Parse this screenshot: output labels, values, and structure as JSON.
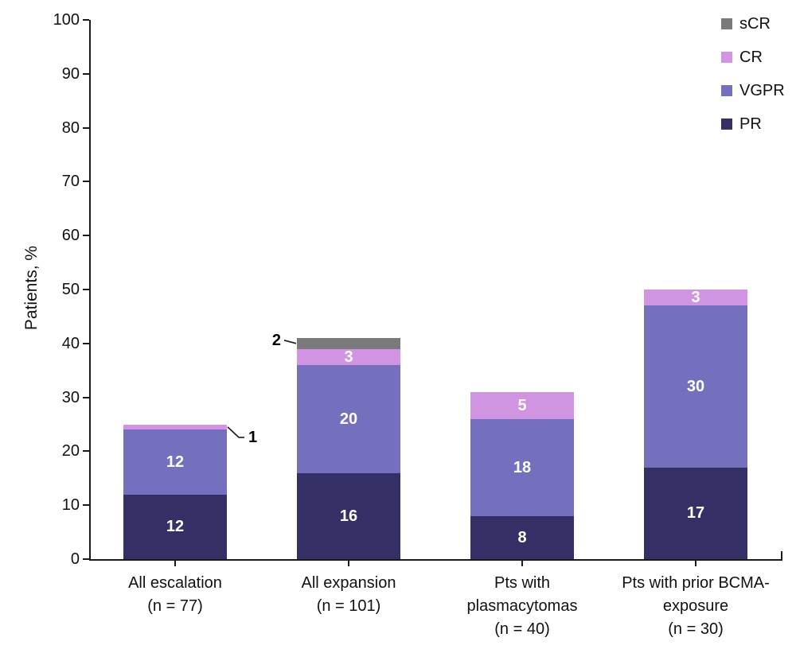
{
  "chart_data": {
    "type": "bar",
    "stacked": true,
    "title": "",
    "xlabel": "",
    "ylabel": "Patients, %",
    "ylim": [
      0,
      100
    ],
    "ytick_labels": [
      "0",
      "10",
      "20",
      "30",
      "40",
      "50",
      "60",
      "70",
      "80",
      "90",
      "100"
    ],
    "grid": false,
    "categories": [
      {
        "lines": [
          "All escalation",
          "(n = 77)"
        ]
      },
      {
        "lines": [
          "All expansion",
          "(n = 101)"
        ]
      },
      {
        "lines": [
          "Pts with",
          "plasmacytomas",
          "(n = 40)"
        ]
      },
      {
        "lines": [
          "Pts with prior BCMA-",
          "exposure",
          "(n = 30)"
        ]
      }
    ],
    "series": [
      {
        "name": "PR",
        "color": "#342F65",
        "values": [
          12,
          16,
          8,
          17
        ]
      },
      {
        "name": "VGPR",
        "color": "#7570BE",
        "values": [
          12,
          20,
          18,
          30
        ]
      },
      {
        "name": "CR",
        "color": "#D094E3",
        "values": [
          1,
          3,
          5,
          3
        ]
      },
      {
        "name": "sCR",
        "color": "#7A797B",
        "values": [
          0,
          2,
          0,
          0
        ]
      }
    ],
    "bar_totals": [
      25,
      41,
      31,
      50
    ],
    "legend": {
      "position": "top-right",
      "order": [
        "sCR",
        "CR",
        "VGPR",
        "PR"
      ]
    },
    "annotations": [
      {
        "series": "CR",
        "category_index": 0,
        "value": "1",
        "side": "right"
      },
      {
        "series": "sCR",
        "category_index": 1,
        "value": "2",
        "side": "left"
      }
    ],
    "inside_label_color": "#ffffff",
    "axis_color": "#1a1a1a"
  }
}
